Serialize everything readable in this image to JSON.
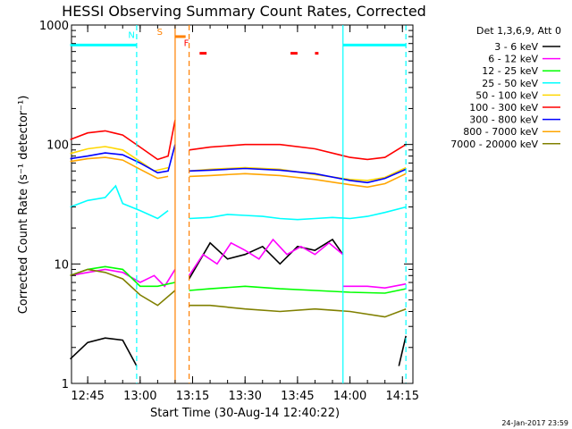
{
  "chart_data": {
    "type": "line",
    "title": "HESSI Observing Summary Count Rates, Corrected",
    "xlabel": "Start Time (30-Aug-14 12:40:22)",
    "ylabel": "Corrected Count Rate (s⁻¹ detector⁻¹)",
    "y_scale": "log",
    "ylim": [
      1,
      1000
    ],
    "xlim": [
      "12:40:22",
      "14:18:00"
    ],
    "x_ticks": [
      "12:45",
      "13:00",
      "13:15",
      "13:30",
      "13:45",
      "14:00",
      "14:15"
    ],
    "y_ticks": [
      "1",
      "10",
      "100",
      "1000"
    ],
    "legend_title": "Det 1,3,6,9, Att 0",
    "legend_position": "right",
    "grid": false,
    "series": [
      {
        "name": "3 - 6 keV",
        "color": "#000000",
        "segments": [
          {
            "x": [
              "12:40",
              "12:45",
              "12:50",
              "12:55",
              "12:59"
            ],
            "y": [
              1.6,
              2.2,
              2.4,
              2.3,
              1.4
            ]
          },
          {
            "x": [
              "13:14",
              "13:20",
              "13:25",
              "13:30",
              "13:35",
              "13:40",
              "13:45",
              "13:50",
              "13:55",
              "13:58"
            ],
            "y": [
              7.5,
              15,
              11,
              12,
              14,
              10,
              14,
              13,
              16,
              12
            ]
          },
          {
            "x": [
              "14:14",
              "14:16"
            ],
            "y": [
              1.4,
              2.5
            ]
          }
        ]
      },
      {
        "name": "6 - 12 keV",
        "color": "#ff00ff",
        "segments": [
          {
            "x": [
              "12:40",
              "12:45",
              "12:50",
              "12:55",
              "13:00",
              "13:04",
              "13:07",
              "13:10"
            ],
            "y": [
              8,
              8.5,
              9,
              8.5,
              7,
              8,
              6.5,
              9
            ]
          },
          {
            "x": [
              "13:14",
              "13:18",
              "13:22",
              "13:26",
              "13:30",
              "13:34",
              "13:38",
              "13:42",
              "13:46",
              "13:50",
              "13:54",
              "13:58"
            ],
            "y": [
              8,
              12,
              10,
              15,
              13,
              11,
              16,
              12,
              14,
              12,
              15,
              12
            ]
          },
          {
            "x": [
              "13:58",
              "14:05",
              "14:10",
              "14:16"
            ],
            "y": [
              6.5,
              6.5,
              6.3,
              6.8
            ]
          }
        ]
      },
      {
        "name": "12 - 25 keV",
        "color": "#00ff00",
        "segments": [
          {
            "x": [
              "12:40",
              "12:45",
              "12:50",
              "12:55",
              "13:00",
              "13:05",
              "13:10"
            ],
            "y": [
              8,
              9,
              9.5,
              9,
              6.5,
              6.5,
              7
            ]
          },
          {
            "x": [
              "13:14",
              "13:20",
              "13:30",
              "13:40",
              "13:50",
              "14:00",
              "14:10",
              "14:16"
            ],
            "y": [
              6,
              6.2,
              6.5,
              6.2,
              6.0,
              5.8,
              5.7,
              6.2
            ]
          }
        ]
      },
      {
        "name": "25 - 50 keV",
        "color": "#00ffff",
        "segments": [
          {
            "x": [
              "12:40",
              "12:45",
              "12:50",
              "12:53",
              "12:55",
              "13:00",
              "13:05",
              "13:08"
            ],
            "y": [
              30,
              34,
              36,
              45,
              32,
              28,
              24,
              28
            ]
          },
          {
            "x": [
              "13:14",
              "13:20",
              "13:25",
              "13:30",
              "13:35",
              "13:40",
              "13:45",
              "13:50",
              "13:55",
              "14:00",
              "14:05",
              "14:10",
              "14:16"
            ],
            "y": [
              24,
              24.5,
              26,
              25.5,
              25,
              24,
              23.5,
              24,
              24.5,
              24,
              25,
              27,
              30
            ]
          }
        ]
      },
      {
        "name": "50 - 100 keV",
        "color": "#ffd700",
        "segments": [
          {
            "x": [
              "12:40",
              "12:45",
              "12:50",
              "12:55",
              "13:00",
              "13:04",
              "13:08"
            ],
            "y": [
              84,
              92,
              96,
              90,
              72,
              60,
              64
            ]
          },
          {
            "x": [
              "13:14",
              "13:20",
              "13:30",
              "13:40",
              "13:50",
              "14:00",
              "14:05",
              "14:10",
              "14:16"
            ],
            "y": [
              60,
              62,
              64,
              62,
              56,
              51,
              50,
              53,
              64
            ]
          }
        ]
      },
      {
        "name": "100 - 300 keV",
        "color": "#ff0000",
        "segments": [
          {
            "x": [
              "12:40",
              "12:45",
              "12:50",
              "12:55",
              "13:00",
              "13:05",
              "13:08",
              "13:10"
            ],
            "y": [
              110,
              125,
              130,
              120,
              95,
              75,
              80,
              160
            ]
          },
          {
            "x": [
              "13:14",
              "13:20",
              "13:30",
              "13:40",
              "13:50",
              "14:00",
              "14:05",
              "14:10",
              "14:16"
            ],
            "y": [
              90,
              95,
              100,
              100,
              92,
              78,
              75,
              78,
              100
            ]
          }
        ]
      },
      {
        "name": "300 - 800 keV",
        "color": "#0000ff",
        "segments": [
          {
            "x": [
              "12:40",
              "12:45",
              "12:50",
              "12:55",
              "13:00",
              "13:05",
              "13:08",
              "13:10"
            ],
            "y": [
              76,
              80,
              85,
              82,
              70,
              58,
              60,
              100
            ]
          },
          {
            "x": [
              "13:14",
              "13:20",
              "13:30",
              "13:40",
              "13:50",
              "14:00",
              "14:05",
              "14:10",
              "14:16"
            ],
            "y": [
              60,
              61,
              63,
              61,
              57,
              50,
              48,
              52,
              62
            ]
          }
        ]
      },
      {
        "name": "800 - 7000 keV",
        "color": "#ffa500",
        "segments": [
          {
            "x": [
              "12:40",
              "12:45",
              "12:50",
              "12:55",
              "13:00",
              "13:05",
              "13:08"
            ],
            "y": [
              72,
              76,
              78,
              74,
              62,
              52,
              54
            ]
          },
          {
            "x": [
              "13:14",
              "13:20",
              "13:30",
              "13:40",
              "13:50",
              "14:00",
              "14:05",
              "14:10",
              "14:16"
            ],
            "y": [
              54,
              55,
              57,
              55,
              51,
              46,
              44,
              47,
              57
            ]
          }
        ]
      },
      {
        "name": "7000 - 20000 keV",
        "color": "#808000",
        "segments": [
          {
            "x": [
              "12:40",
              "12:45",
              "12:50",
              "12:55",
              "13:00",
              "13:05",
              "13:10"
            ],
            "y": [
              8,
              9,
              8.5,
              7.5,
              5.5,
              4.5,
              6
            ]
          },
          {
            "x": [
              "13:14",
              "13:20",
              "13:30",
              "13:40",
              "13:50",
              "14:00",
              "14:10",
              "14:16"
            ],
            "y": [
              4.5,
              4.5,
              4.2,
              4.0,
              4.2,
              4.0,
              3.6,
              4.2
            ]
          }
        ]
      }
    ],
    "annotations": [
      {
        "label": "N",
        "color": "#00ffff",
        "x_start": "12:40",
        "x_end": "12:59",
        "level": 680
      },
      {
        "label": "N",
        "color": "#00ffff",
        "x_start": "13:58",
        "x_end": "14:16",
        "level": 680
      },
      {
        "label": "S",
        "color": "#ff8000",
        "x_start": "13:10",
        "x_end": "13:13",
        "level": 800
      },
      {
        "label": "F",
        "color": "#ff0000",
        "ranges": [
          [
            "13:17",
            "13:19"
          ],
          [
            "13:43",
            "13:45"
          ],
          [
            "13:50",
            "13:51"
          ]
        ],
        "level": 580
      }
    ],
    "vertical_markers": [
      {
        "x": "12:59",
        "color": "#00ffff",
        "style": "dashed"
      },
      {
        "x": "13:58",
        "color": "#00ffff",
        "style": "solid"
      },
      {
        "x": "14:16",
        "color": "#00ffff",
        "style": "dashed"
      },
      {
        "x": "13:10",
        "color": "#ff8000",
        "style": "solid"
      },
      {
        "x": "13:14",
        "color": "#ff8000",
        "style": "dashed"
      }
    ]
  },
  "footer": {
    "timestamp": "24-Jan-2017 23:59"
  }
}
